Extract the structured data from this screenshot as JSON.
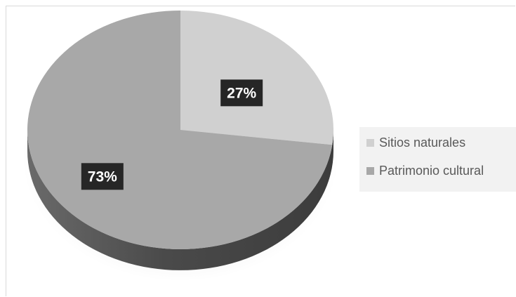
{
  "chart_data": {
    "type": "pie",
    "title": "",
    "slices": [
      {
        "name": "Sitios naturales",
        "value": 27,
        "label": "27%",
        "color": "#d0d0d0"
      },
      {
        "name": "Patrimonio cultural",
        "value": 73,
        "label": "73%",
        "color": "#a8a8a8"
      }
    ],
    "style": "3d",
    "legend": {
      "position": "right"
    },
    "data_label_style": {
      "background": "#262626",
      "color": "#ffffff"
    },
    "side_color": "#5a5a5a"
  }
}
